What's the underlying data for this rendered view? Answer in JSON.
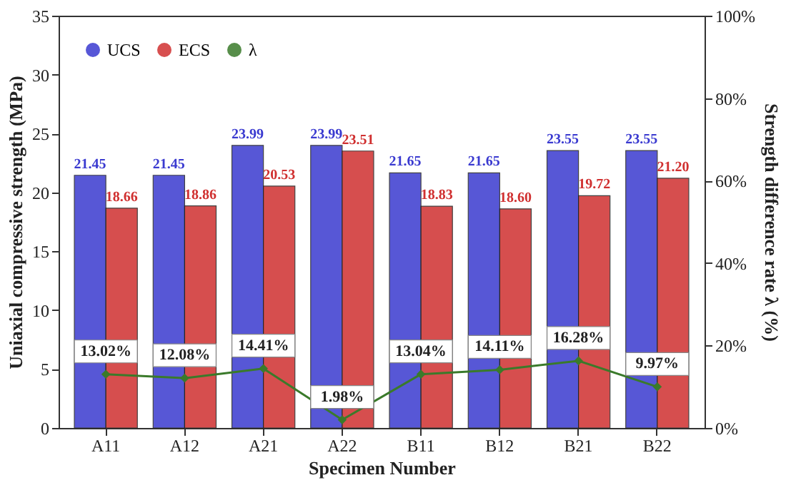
{
  "chart_data": {
    "type": "bar",
    "xlabel": "Specimen Number",
    "ylabel": "Uniaxial compressive strength (MPa)",
    "y2label": "Strength difference rate λ (%)",
    "categories": [
      "A11",
      "A12",
      "A21",
      "A22",
      "B11",
      "B12",
      "B21",
      "B22"
    ],
    "series": [
      {
        "name": "UCS",
        "color": "#3a3ad0",
        "values": [
          21.45,
          21.45,
          23.99,
          23.99,
          21.65,
          21.65,
          23.55,
          23.55
        ]
      },
      {
        "name": "ECS",
        "color": "#d03030",
        "value_labels": [
          "18.66",
          "18.86",
          "20.53",
          "23.51",
          "18.83",
          "18.60",
          "19.72",
          "21.20"
        ],
        "values": [
          18.66,
          18.86,
          20.53,
          23.51,
          18.83,
          18.6,
          19.72,
          21.2
        ]
      },
      {
        "name": "λ",
        "color": "#3a7a2a",
        "type": "line",
        "axis": "y2",
        "marker": "diamond",
        "value_labels": [
          "13.02%",
          "12.08%",
          "14.41%",
          "1.98%",
          "13.04%",
          "14.11%",
          "16.28%",
          "9.97%"
        ],
        "values": [
          13.02,
          12.08,
          14.41,
          1.98,
          13.04,
          14.11,
          16.28,
          9.97
        ]
      }
    ],
    "data_labels": true,
    "ylim": [
      0,
      35
    ],
    "yticks": [
      0,
      5,
      10,
      15,
      20,
      25,
      30,
      35
    ],
    "y2lim": [
      0,
      100
    ],
    "y2ticks": [
      {
        "value": 0,
        "label": "0%"
      },
      {
        "value": 20,
        "label": "20%"
      },
      {
        "value": 40,
        "label": "40%"
      },
      {
        "value": 60,
        "label": "60%"
      },
      {
        "value": 80,
        "label": "80%"
      },
      {
        "value": 100,
        "label": "100%"
      }
    ],
    "legend": "top left",
    "grid": false
  }
}
